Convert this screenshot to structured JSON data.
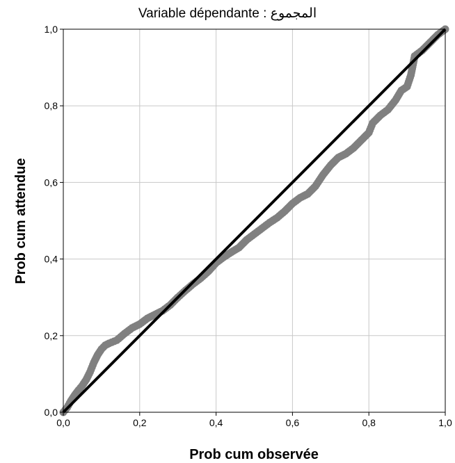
{
  "chart_data": {
    "type": "scatter",
    "title": "Variable dépendante : المجموع",
    "xlabel": "Prob cum observée",
    "ylabel": "Prob cum attendue",
    "xlim": [
      0,
      1
    ],
    "ylim": [
      0,
      1
    ],
    "x_ticks": [
      "0,0",
      "0,2",
      "0,4",
      "0,6",
      "0,8",
      "1,0"
    ],
    "y_ticks": [
      "0,0",
      "0,2",
      "0,4",
      "0,6",
      "0,8",
      "1,0"
    ],
    "grid": true,
    "reference_line": {
      "from": [
        0,
        0
      ],
      "to": [
        1,
        1
      ]
    },
    "series": [
      {
        "points": [
          [
            0.0,
            0.0
          ],
          [
            0.01,
            0.012
          ],
          [
            0.02,
            0.03
          ],
          [
            0.03,
            0.045
          ],
          [
            0.04,
            0.058
          ],
          [
            0.05,
            0.07
          ],
          [
            0.06,
            0.085
          ],
          [
            0.07,
            0.105
          ],
          [
            0.08,
            0.13
          ],
          [
            0.09,
            0.15
          ],
          [
            0.1,
            0.165
          ],
          [
            0.11,
            0.175
          ],
          [
            0.12,
            0.18
          ],
          [
            0.14,
            0.188
          ],
          [
            0.16,
            0.205
          ],
          [
            0.18,
            0.22
          ],
          [
            0.2,
            0.23
          ],
          [
            0.22,
            0.245
          ],
          [
            0.24,
            0.255
          ],
          [
            0.26,
            0.265
          ],
          [
            0.28,
            0.28
          ],
          [
            0.3,
            0.3
          ],
          [
            0.32,
            0.318
          ],
          [
            0.34,
            0.335
          ],
          [
            0.36,
            0.35
          ],
          [
            0.38,
            0.368
          ],
          [
            0.4,
            0.39
          ],
          [
            0.42,
            0.405
          ],
          [
            0.44,
            0.418
          ],
          [
            0.46,
            0.43
          ],
          [
            0.48,
            0.45
          ],
          [
            0.5,
            0.465
          ],
          [
            0.52,
            0.48
          ],
          [
            0.54,
            0.495
          ],
          [
            0.56,
            0.508
          ],
          [
            0.58,
            0.525
          ],
          [
            0.6,
            0.545
          ],
          [
            0.62,
            0.56
          ],
          [
            0.64,
            0.57
          ],
          [
            0.66,
            0.59
          ],
          [
            0.68,
            0.62
          ],
          [
            0.7,
            0.645
          ],
          [
            0.72,
            0.665
          ],
          [
            0.74,
            0.675
          ],
          [
            0.76,
            0.69
          ],
          [
            0.78,
            0.71
          ],
          [
            0.8,
            0.73
          ],
          [
            0.81,
            0.755
          ],
          [
            0.83,
            0.775
          ],
          [
            0.85,
            0.79
          ],
          [
            0.87,
            0.815
          ],
          [
            0.885,
            0.84
          ],
          [
            0.9,
            0.85
          ],
          [
            0.91,
            0.88
          ],
          [
            0.92,
            0.93
          ],
          [
            0.94,
            0.945
          ],
          [
            0.96,
            0.965
          ],
          [
            0.98,
            0.985
          ],
          [
            1.0,
            1.0
          ]
        ],
        "color": "#808080"
      }
    ],
    "colors": {
      "points": "#808080",
      "reference": "#000000",
      "grid": "#c8c8c8",
      "frame": "#000000"
    }
  }
}
